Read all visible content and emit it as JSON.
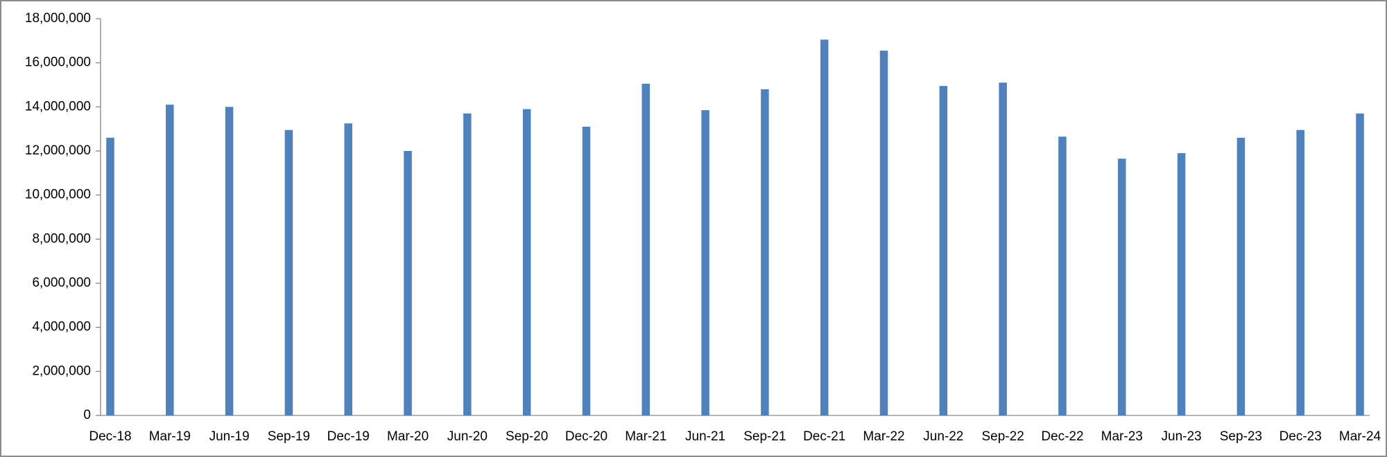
{
  "chart_data": {
    "type": "bar",
    "categories": [
      "Dec-18",
      "Mar-19",
      "Jun-19",
      "Sep-19",
      "Dec-19",
      "Mar-20",
      "Jun-20",
      "Sep-20",
      "Dec-20",
      "Mar-21",
      "Jun-21",
      "Sep-21",
      "Dec-21",
      "Mar-22",
      "Jun-22",
      "Sep-22",
      "Dec-22",
      "Mar-23",
      "Jun-23",
      "Sep-23",
      "Dec-23",
      "Mar-24"
    ],
    "values": [
      12600000,
      14100000,
      14000000,
      12950000,
      13250000,
      12000000,
      13700000,
      13900000,
      13100000,
      15050000,
      13850000,
      14800000,
      17050000,
      16550000,
      14950000,
      15100000,
      12650000,
      11650000,
      11900000,
      12600000,
      12950000,
      13700000
    ],
    "color": "#4f81bd",
    "ylim": [
      0,
      18000000
    ],
    "yticks": [
      0,
      {
        "value": 2000000,
        "label": "2,000,000"
      },
      {
        "value": 4000000,
        "label": "4,000,000"
      },
      {
        "value": 6000000,
        "label": "6,000,000"
      },
      {
        "value": 8000000,
        "label": "8,000,000"
      },
      {
        "value": 10000000,
        "label": "10,000,000"
      },
      {
        "value": 12000000,
        "label": "12,000,000"
      },
      {
        "value": 14000000,
        "label": "14,000,000"
      },
      {
        "value": 16000000,
        "label": "16,000,000"
      },
      {
        "value": 18000000,
        "label": "18,000,000"
      }
    ],
    "grid": false
  }
}
